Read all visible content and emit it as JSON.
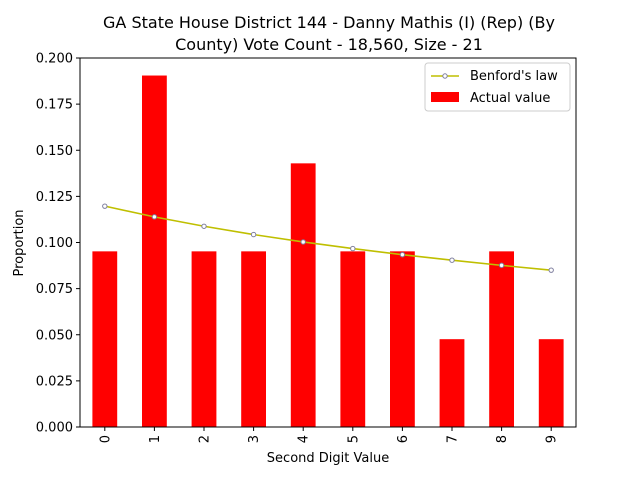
{
  "chart_data": {
    "type": "bar",
    "title_lines": [
      "GA State House District 144 - Danny Mathis (I) (Rep) (By",
      "County) Vote Count - 18,560, Size - 21"
    ],
    "xlabel": "Second Digit Value",
    "ylabel": "Proportion",
    "categories": [
      "0",
      "1",
      "2",
      "3",
      "4",
      "5",
      "6",
      "7",
      "8",
      "9"
    ],
    "ylim": [
      0,
      0.2
    ],
    "yticks": [
      "0.000",
      "0.025",
      "0.050",
      "0.075",
      "0.100",
      "0.125",
      "0.150",
      "0.175",
      "0.200"
    ],
    "ytick_values": [
      0,
      0.025,
      0.05,
      0.075,
      0.1,
      0.125,
      0.15,
      0.175,
      0.2
    ],
    "series": [
      {
        "name": "Actual value",
        "kind": "bar",
        "color": "#ff0000",
        "values": [
          0.0952,
          0.1905,
          0.0952,
          0.0952,
          0.1429,
          0.0952,
          0.0952,
          0.0476,
          0.0952,
          0.0476
        ]
      },
      {
        "name": "Benford's law",
        "kind": "line",
        "color": "#bfbf00",
        "marker_color": "#7f7f9f",
        "values": [
          0.1197,
          0.1139,
          0.1088,
          0.1043,
          0.1003,
          0.0967,
          0.0934,
          0.0904,
          0.0876,
          0.085
        ]
      }
    ],
    "legend": {
      "position": "top-right",
      "entries": [
        "Benford's law",
        "Actual value"
      ]
    },
    "grid": false
  }
}
